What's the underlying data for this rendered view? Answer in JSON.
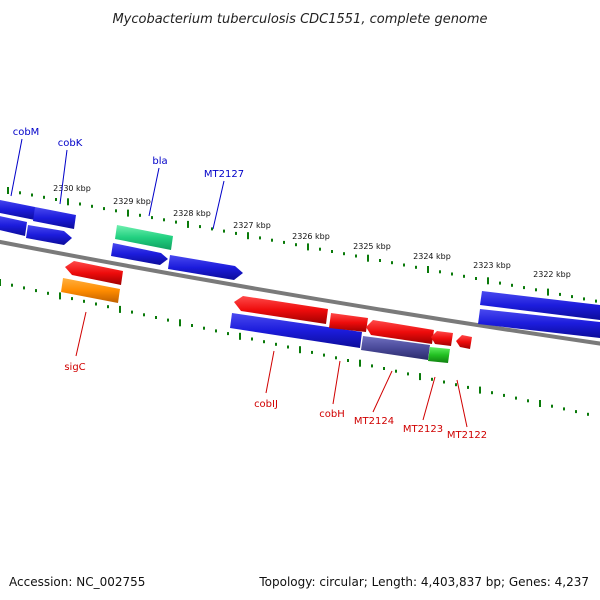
{
  "title": "Mycobacterium tuberculosis CDC1551, complete genome",
  "footer": {
    "accession": "Accession: NC_002755",
    "summary": "Topology: circular; Length: 4,403,837 bp; Genes: 4,237"
  },
  "colors": {
    "tick": "#0a7a0a",
    "backbone": "#7a7a7a",
    "forward_label": "#0000c8",
    "reverse_label": "#d00000",
    "blue": "#1c1cdc",
    "red": "#ee0c0c",
    "green": "#22d080",
    "orange": "#ff8c00",
    "purple": "#4a4a9a",
    "lime": "#22c022"
  },
  "scale_labels": [
    "2330 kbp",
    "2329 kbp",
    "2328 kbp",
    "2327 kbp",
    "2326 kbp",
    "2325 kbp",
    "2324 kbp",
    "2323 kbp",
    "2322 kbp"
  ],
  "forward_gene_labels": [
    "cobM",
    "cobK",
    "bla",
    "MT2127"
  ],
  "reverse_gene_labels": [
    "sigC",
    "cobIJ",
    "cobH",
    "MT2124",
    "MT2123",
    "MT2122"
  ]
}
